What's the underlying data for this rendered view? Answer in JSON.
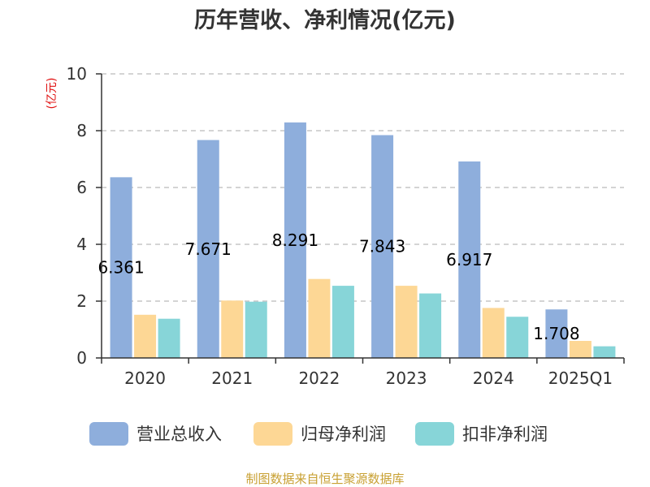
{
  "chart_data": {
    "type": "bar",
    "title": "历年营收、净利情况(亿元)",
    "ylabel": "(亿元)",
    "xlabel": "",
    "ylim": [
      0,
      10
    ],
    "yticks": [
      0,
      2,
      4,
      6,
      8,
      10
    ],
    "grid": true,
    "legend_position": "bottom",
    "categories": [
      "2020",
      "2021",
      "2022",
      "2023",
      "2024",
      "2025Q1"
    ],
    "series": [
      {
        "name": "营业总收入",
        "color": "#8eaedc",
        "values": [
          6.361,
          7.671,
          8.291,
          7.843,
          6.917,
          1.708
        ],
        "labels": [
          "6.361",
          "7.671",
          "8.291",
          "7.843",
          "6.917",
          "1.708"
        ]
      },
      {
        "name": "归母净利润",
        "color": "#fdd795",
        "values": [
          1.52,
          2.02,
          2.78,
          2.54,
          1.76,
          0.6
        ]
      },
      {
        "name": "扣非净利润",
        "color": "#87d5d8",
        "values": [
          1.38,
          1.98,
          2.54,
          2.27,
          1.45,
          0.41
        ]
      }
    ]
  },
  "footer": {
    "source": "制图数据来自恒生聚源数据库"
  }
}
